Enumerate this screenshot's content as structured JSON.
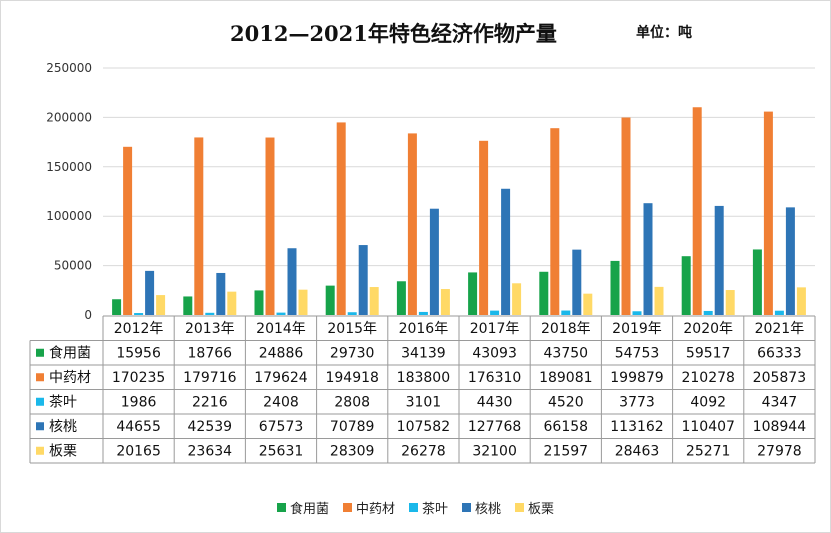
{
  "title": "2012—2021年特色经济作物产量",
  "unit_label": "单位：吨",
  "colors": {
    "食用菌": "#17a34a",
    "中药材": "#f07f34",
    "茶叶": "#1ab8ea",
    "核桃": "#2e75b6",
    "板栗": "#ffd966"
  },
  "chart_data": {
    "type": "bar",
    "title": "2012—2021年特色经济作物产量",
    "unit": "单位：吨",
    "categories": [
      "2012年",
      "2013年",
      "2014年",
      "2015年",
      "2016年",
      "2017年",
      "2018年",
      "2019年",
      "2020年",
      "2021年"
    ],
    "ylim": [
      0,
      250000
    ],
    "yticks": [
      "0",
      "50000",
      "100000",
      "150000",
      "200000",
      "250000"
    ],
    "grid": true,
    "legend_position": "bottom",
    "data_table": true,
    "series": [
      {
        "name": "食用菌",
        "values": [
          15956,
          18766,
          24886,
          29730,
          34139,
          43093,
          43750,
          54753,
          59517,
          66333
        ]
      },
      {
        "name": "中药材",
        "values": [
          170235,
          179716,
          179624,
          194918,
          183800,
          176310,
          189081,
          199879,
          210278,
          205873
        ]
      },
      {
        "name": "茶叶",
        "values": [
          1986,
          2216,
          2408,
          2808,
          3101,
          4430,
          4520,
          3773,
          4092,
          4347
        ]
      },
      {
        "name": "核桃",
        "values": [
          44655,
          42539,
          67573,
          70789,
          107582,
          127768,
          66158,
          113162,
          110407,
          108944
        ]
      },
      {
        "name": "板栗",
        "values": [
          20165,
          23634,
          25631,
          28309,
          26278,
          32100,
          21597,
          28463,
          25271,
          27978
        ]
      }
    ]
  }
}
